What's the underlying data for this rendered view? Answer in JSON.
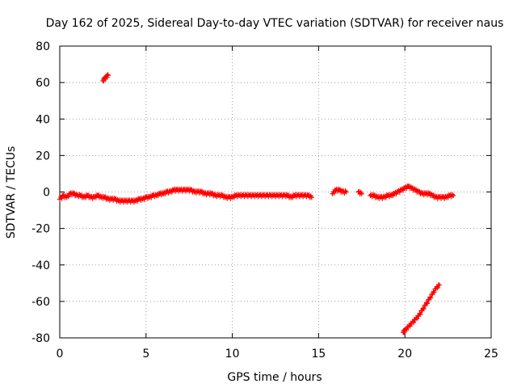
{
  "chart_data": {
    "type": "scatter",
    "title": "Day 162 of 2025, Sidereal Day-to-day VTEC variation (SDTVAR) for receiver naus",
    "xlabel": "GPS time / hours",
    "ylabel": "SDTVAR / TECUs",
    "xlim": [
      0,
      25
    ],
    "ylim": [
      -80,
      80
    ],
    "x_ticks": [
      0,
      5,
      10,
      15,
      20,
      25
    ],
    "y_ticks": [
      -80,
      -60,
      -40,
      -20,
      0,
      20,
      40,
      60,
      80
    ],
    "x_tick_labels": [
      "0",
      "5",
      "10",
      "15",
      "20",
      "25"
    ],
    "y_tick_labels": [
      "-80",
      "-60",
      "-40",
      "-20",
      "0",
      "20",
      "40",
      "60",
      "80"
    ],
    "grid": true,
    "marker": "plus",
    "color": "#ff0000",
    "series": [
      {
        "name": "segment-high-outlier",
        "x": [
          2.5,
          2.6,
          2.7,
          2.8
        ],
        "y": [
          61,
          62,
          63,
          64
        ]
      },
      {
        "name": "main-trace-1",
        "x": [
          0.0,
          0.2,
          0.4,
          0.6,
          0.8,
          1.0,
          1.2,
          1.4,
          1.6,
          1.8,
          2.0,
          2.2,
          2.4,
          2.6,
          2.8,
          3.0,
          3.2,
          3.4,
          3.6,
          3.8,
          4.0,
          4.2,
          4.4,
          4.6,
          4.8,
          5.0,
          5.2,
          5.4,
          5.6,
          5.8,
          6.0,
          6.2,
          6.4,
          6.6,
          6.8,
          7.0,
          7.2,
          7.4,
          7.6,
          7.8,
          8.0,
          8.2,
          8.4,
          8.6,
          8.8,
          9.0,
          9.2,
          9.4,
          9.6,
          9.8,
          10.0,
          10.2,
          10.4,
          10.6,
          10.8,
          11.0,
          11.2,
          11.4,
          11.6,
          11.8,
          12.0,
          12.2,
          12.4,
          12.6,
          12.8,
          13.0,
          13.2,
          13.4,
          13.6,
          13.8,
          14.0,
          14.2,
          14.4,
          14.6
        ],
        "y": [
          -4,
          -2,
          -3,
          -1,
          -1,
          -2,
          -2,
          -3,
          -2,
          -3,
          -3,
          -2,
          -3,
          -3,
          -4,
          -4,
          -4,
          -5,
          -5,
          -5,
          -5,
          -5,
          -5,
          -4,
          -4,
          -3,
          -3,
          -2,
          -2,
          -1,
          -1,
          0,
          0,
          1,
          1,
          1,
          1,
          1,
          1,
          0,
          0,
          0,
          -1,
          -1,
          -1,
          -2,
          -2,
          -2,
          -3,
          -3,
          -3,
          -2,
          -2,
          -2,
          -2,
          -2,
          -2,
          -2,
          -2,
          -2,
          -2,
          -2,
          -2,
          -2,
          -2,
          -2,
          -2,
          -3,
          -2,
          -2,
          -2,
          -2,
          -2,
          -3
        ]
      },
      {
        "name": "main-trace-2",
        "x": [
          15.8,
          16.0,
          16.2,
          16.4,
          16.6,
          17.3,
          17.5,
          18.0,
          18.2,
          18.4,
          18.6,
          18.8,
          19.0,
          19.2,
          19.4,
          19.6,
          19.8,
          20.0,
          20.2,
          20.4,
          20.6,
          20.8,
          21.0,
          21.2,
          21.4,
          21.6,
          21.8,
          22.0,
          22.2,
          22.4,
          22.6,
          22.8
        ],
        "y": [
          -1,
          1,
          1,
          0,
          0,
          0,
          -1,
          -2,
          -2,
          -3,
          -3,
          -3,
          -2,
          -2,
          -1,
          0,
          1,
          2,
          3,
          2,
          1,
          0,
          -1,
          -1,
          -1,
          -2,
          -3,
          -3,
          -3,
          -3,
          -2,
          -2
        ]
      },
      {
        "name": "segment-low-ramp",
        "x": [
          19.9,
          20.0,
          20.2,
          20.4,
          20.6,
          20.8,
          21.0,
          21.2,
          21.4,
          21.6,
          21.8,
          22.0
        ],
        "y": [
          -77,
          -76,
          -74,
          -72,
          -70,
          -68,
          -65,
          -62,
          -59,
          -56,
          -53,
          -51
        ]
      }
    ]
  }
}
